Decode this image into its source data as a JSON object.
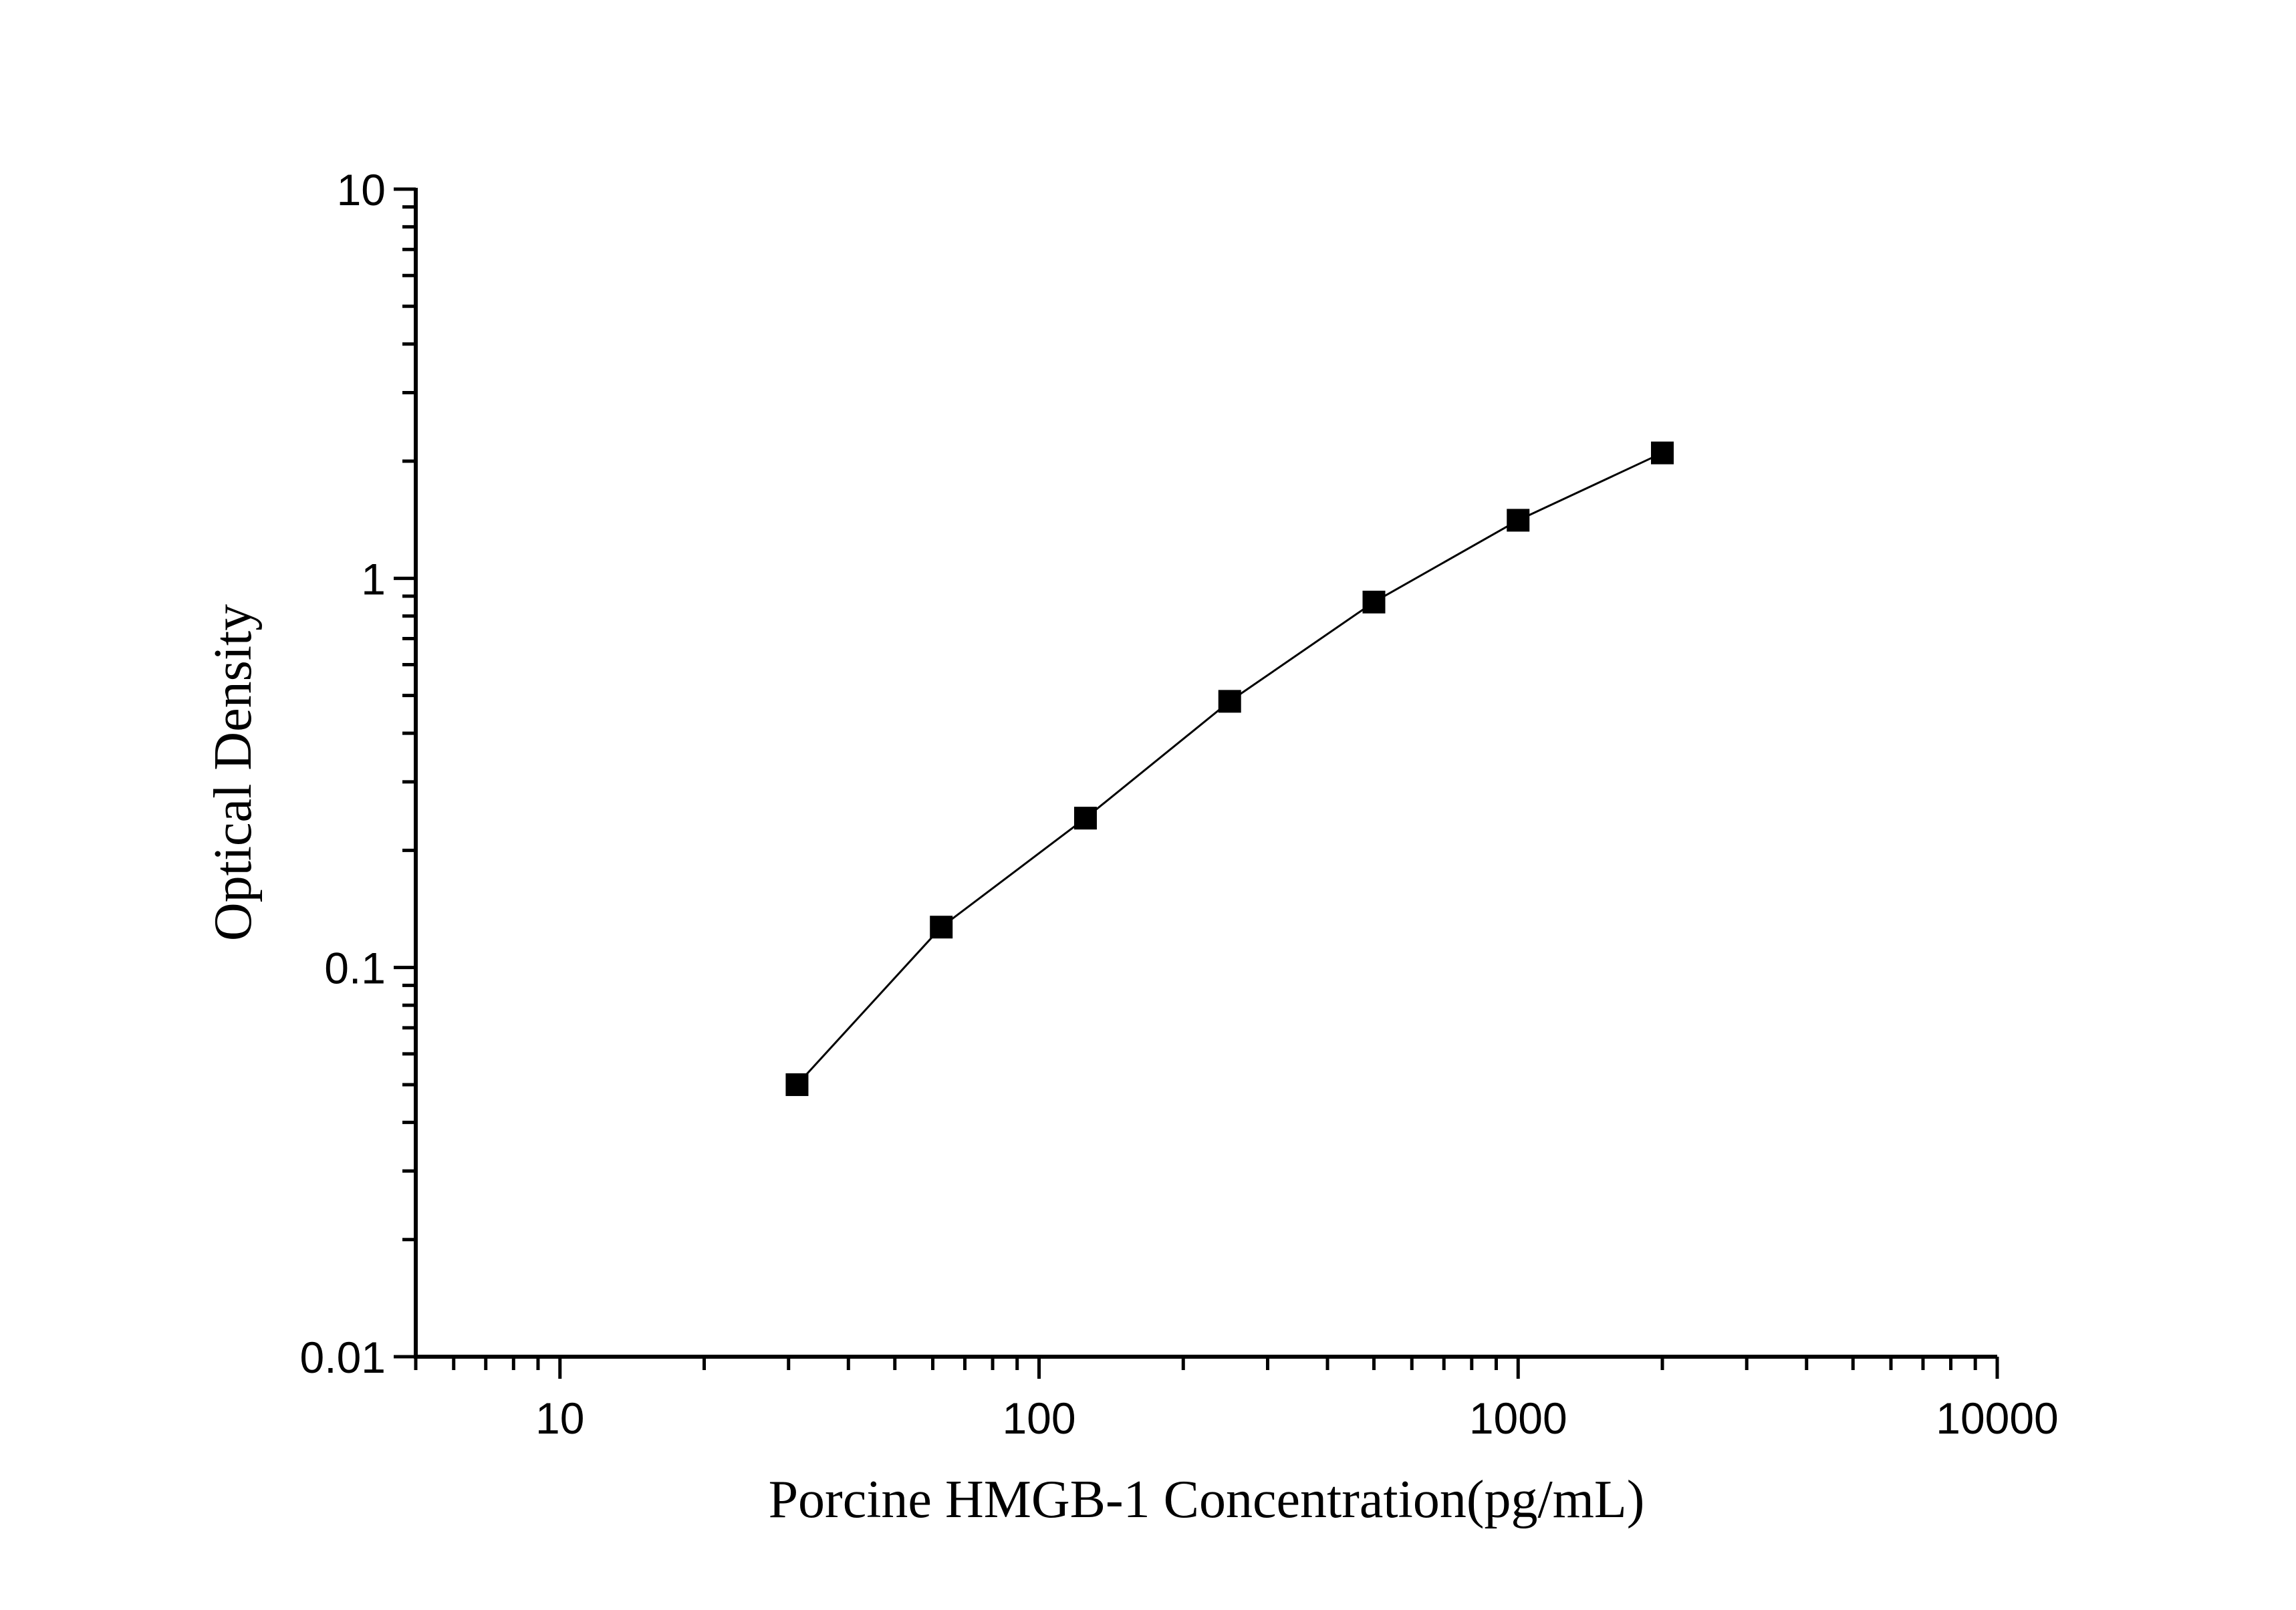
{
  "chart_data": {
    "type": "line",
    "title": "",
    "xlabel": "Porcine HMGB-1 Concentration(pg/mL)",
    "ylabel": "Optical Density",
    "xscale": "log",
    "yscale": "log",
    "xlim": [
      5,
      10000
    ],
    "ylim": [
      0.01,
      10
    ],
    "xticks": [
      10,
      100,
      1000,
      10000
    ],
    "xtick_labels": [
      "10",
      "100",
      "1000",
      "10000"
    ],
    "yticks": [
      0.01,
      0.1,
      1,
      10
    ],
    "ytick_labels": [
      "0.01",
      "0.1",
      "1",
      "10"
    ],
    "grid": false,
    "marker": "square",
    "color": "#000000",
    "series": [
      {
        "x": [
          31.25,
          62.5,
          125,
          250,
          500,
          1000,
          2000
        ],
        "y": [
          0.05,
          0.127,
          0.242,
          0.483,
          0.869,
          1.41,
          2.1
        ]
      }
    ]
  }
}
